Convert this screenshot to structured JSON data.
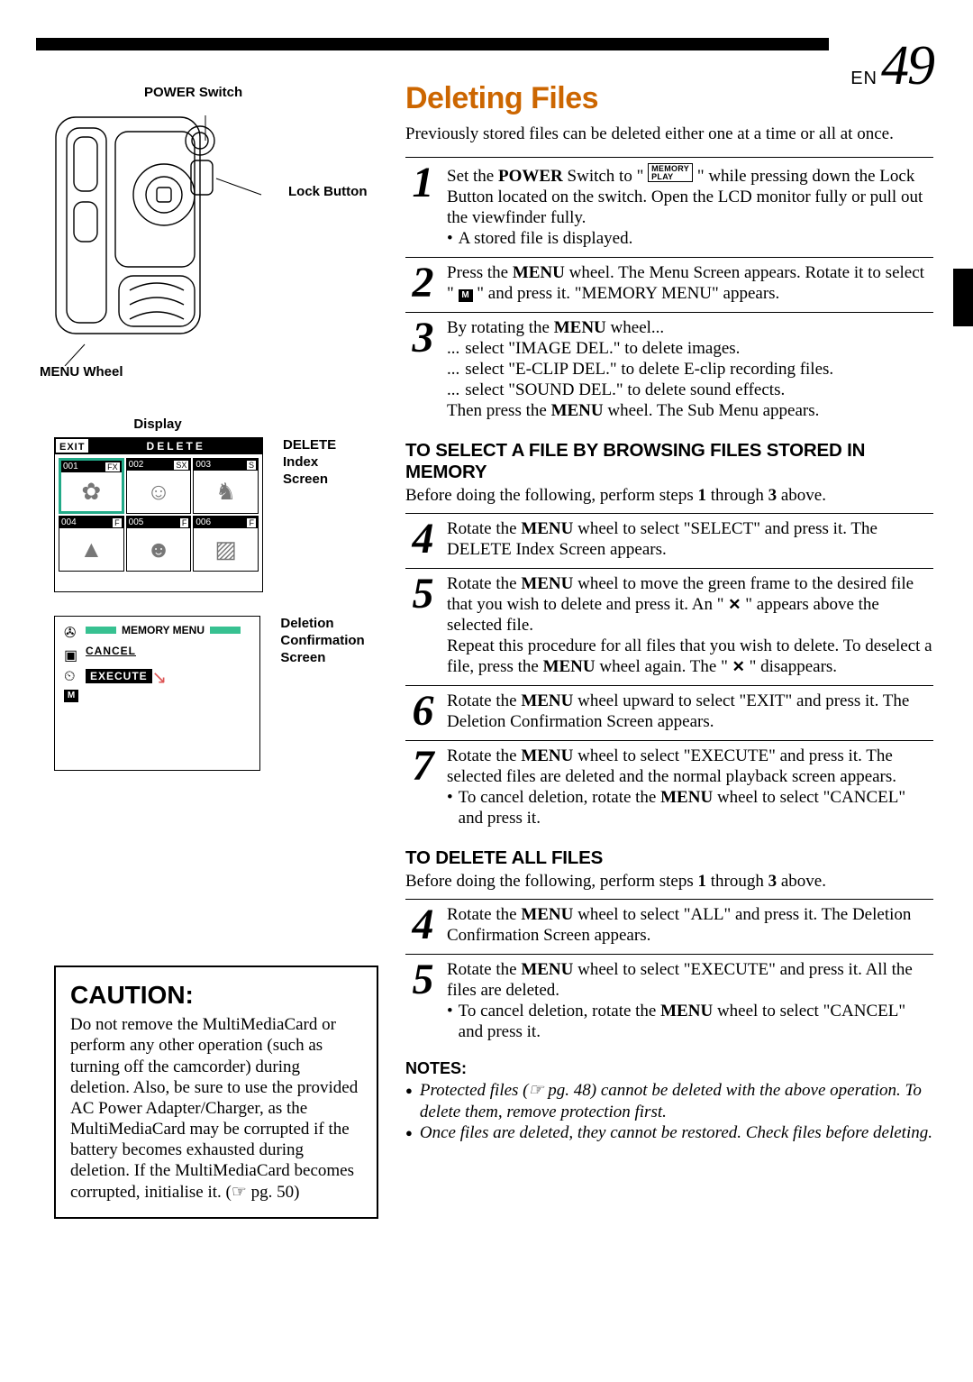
{
  "page": {
    "prefix": "EN",
    "number": "49"
  },
  "labels": {
    "power_switch": "POWER Switch",
    "lock_button": "Lock Button",
    "menu_wheel": "MENU Wheel",
    "display": "Display",
    "delete_index_caption": "DELETE Index Screen",
    "deletion_conf_caption": "Deletion Confirmation Screen"
  },
  "delete_screen": {
    "exit": "EXIT",
    "title": "DELETE",
    "thumbs": [
      {
        "num": "001",
        "tag": "FX"
      },
      {
        "num": "002",
        "tag": "SX"
      },
      {
        "num": "003",
        "tag": "S"
      },
      {
        "num": "004",
        "tag": "F"
      },
      {
        "num": "005",
        "tag": "F"
      },
      {
        "num": "006",
        "tag": "F"
      }
    ]
  },
  "memory_screen": {
    "title": "MEMORY  MENU",
    "items": [
      "CANCEL",
      "EXECUTE"
    ],
    "bar_color": "#37c191"
  },
  "caution": {
    "title": "CAUTION:",
    "body_html": "Do not remove the MultiMediaCard or perform any other operation (such as turning off the camcorder) during deletion. Also, be sure to use the provided AC Power Adapter/Charger, as the MultiMediaCard may be corrupted if the battery becomes exhausted during deletion. If the MultiMediaCard becomes corrupted, initialise it. (☞ pg. 50)"
  },
  "main": {
    "title": "Deleting Files",
    "title_color": "#cc6600",
    "intro": "Previously stored files can be deleted either one at a time or all at once.",
    "steps_a": [
      {
        "n": "1",
        "body": "Set the <b class='sb'>POWER</b> Switch to \" <span class='inline-icon'>MEMORY<br>PLAY</span> \" while pressing down the Lock Button located on the switch. Open the LCD monitor fully or pull out the viewfinder fully.",
        "bullets": [
          "A stored file is displayed."
        ]
      },
      {
        "n": "2",
        "body": "Press the <b class='sb'>MENU</b> wheel. The Menu Screen appears. Rotate it to select \" <span class='inline-icon-m'>M</span> \" and press it. \"MEMORY MENU\" appears."
      },
      {
        "n": "3",
        "body": "By rotating the <b class='sb'>MENU</b> wheel...",
        "dots": [
          "select \"IMAGE DEL.\" to delete images.",
          "select \"E-CLIP DEL.\" to delete E-clip recording files.",
          "select \"SOUND DEL.\" to delete sound effects."
        ],
        "tail": "Then press the <b class='sb'>MENU</b> wheel. The Sub Menu appears."
      }
    ],
    "sub1_head": "TO SELECT A FILE BY BROWSING FILES STORED IN MEMORY",
    "sub1_intro": "Before doing the following, perform steps <b class='sb'>1</b> through <b class='sb'>3</b> above.",
    "steps_b": [
      {
        "n": "4",
        "body": "Rotate the <b class='sb'>MENU</b> wheel to select \"SELECT\" and press it. The DELETE Index Screen appears."
      },
      {
        "n": "5",
        "body": "Rotate the <b class='sb'>MENU</b> wheel to move the green frame to the desired file that you wish to delete and press it. An \" <span class='inline-x'>✕</span> \" appears above the selected file.<br>Repeat this procedure for all files that you wish to delete. To deselect a file, press the <b class='sb'>MENU</b> wheel again. The \" <span class='inline-x'>✕</span> \" disappears."
      },
      {
        "n": "6",
        "body": "Rotate the <b class='sb'>MENU</b> wheel upward to select \"EXIT\" and press it. The Deletion Confirmation Screen appears."
      },
      {
        "n": "7",
        "body": "Rotate the <b class='sb'>MENU</b> wheel to select \"EXECUTE\" and press it. The selected files are deleted and the normal playback screen appears.",
        "bullets": [
          "To cancel deletion, rotate the <b class='sb'>MENU</b> wheel to select \"CANCEL\" and press it."
        ]
      }
    ],
    "sub2_head": "TO DELETE ALL FILES",
    "sub2_intro": "Before doing the following, perform steps <b class='sb'>1</b> through <b class='sb'>3</b> above.",
    "steps_c": [
      {
        "n": "4",
        "body": "Rotate the <b class='sb'>MENU</b> wheel to select \"ALL\" and press it. The Deletion Confirmation Screen appears."
      },
      {
        "n": "5",
        "body": "Rotate the <b class='sb'>MENU</b> wheel to select \"EXECUTE\" and press it. All the files are deleted.",
        "bullets": [
          "To cancel deletion, rotate the <b class='sb'>MENU</b> wheel to select \"CANCEL\" and press it."
        ]
      }
    ],
    "notes_head": "NOTES:",
    "notes": [
      "Protected files (☞ pg. 48) cannot be deleted with the above operation. To delete them, remove protection first.",
      "Once files are deleted, they cannot be restored. Check files before deleting."
    ]
  }
}
